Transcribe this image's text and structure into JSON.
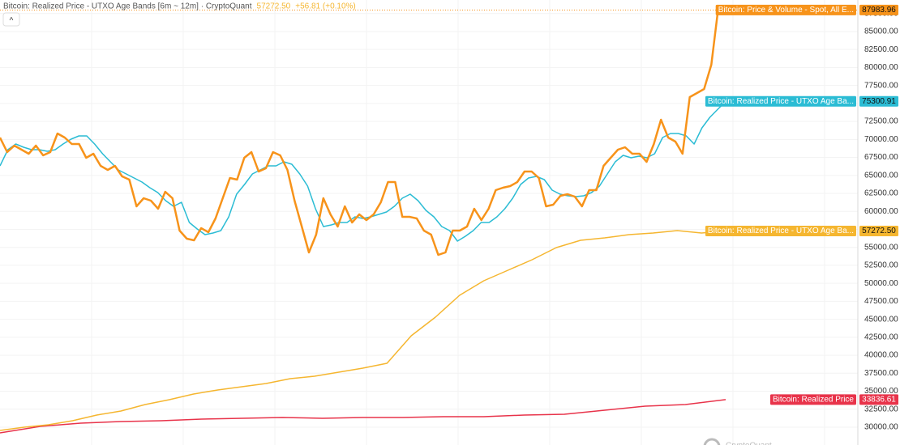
{
  "chart_data": {
    "type": "line",
    "title": "Bitcoin: Realized Price - UTXO Age Bands [6m ~ 12m] · CryptoQuant",
    "change": "+56.81 (+0.10%)",
    "collapse_button": "^",
    "watermark": "CryptoQuant",
    "ylim": [
      27525,
      89380
    ],
    "yticks": [
      {
        "value": 30000,
        "label": "30000.00"
      },
      {
        "value": 32500,
        "label": "32500.00"
      },
      {
        "value": 35000,
        "label": "35000.00"
      },
      {
        "value": 37500,
        "label": "37500.00"
      },
      {
        "value": 40000,
        "label": "40000.00"
      },
      {
        "value": 42500,
        "label": "42500.00"
      },
      {
        "value": 45000,
        "label": "45000.00"
      },
      {
        "value": 47500,
        "label": "47500.00"
      },
      {
        "value": 50000,
        "label": "50000.00"
      },
      {
        "value": 52500,
        "label": "52500.00"
      },
      {
        "value": 55000,
        "label": "55000.00"
      },
      {
        "value": 57500,
        "label": "57500.00"
      },
      {
        "value": 60000,
        "label": "60000.00"
      },
      {
        "value": 62500,
        "label": "62500.00"
      },
      {
        "value": 65000,
        "label": "65000.00"
      },
      {
        "value": 67500,
        "label": "67500.00"
      },
      {
        "value": 70000,
        "label": "70000.00"
      },
      {
        "value": 72500,
        "label": "72500.00"
      },
      {
        "value": 75000,
        "label": "75000.00"
      },
      {
        "value": 77500,
        "label": "77500.00"
      },
      {
        "value": 80000,
        "label": "80000.00"
      },
      {
        "value": 82500,
        "label": "82500.00"
      },
      {
        "value": 85000,
        "label": "85000.00"
      },
      {
        "value": 87500,
        "label": "87500.00"
      }
    ],
    "grid": true,
    "series": [
      {
        "name": "Bitcoin: Price & Volume - Spot, All E...",
        "color": "#f7931a",
        "width": 2.5,
        "values": [
          70260,
          68236,
          69135,
          68573,
          68011,
          69135,
          67786,
          68236,
          70822,
          70260,
          69360,
          69360,
          67448,
          68011,
          66324,
          65761,
          66324,
          64862,
          64412,
          60701,
          61825,
          61488,
          60363,
          62725,
          61825,
          57327,
          56202,
          55977,
          57664,
          57102,
          59014,
          61825,
          64637,
          64412,
          67448,
          68236,
          65536,
          65986,
          68236,
          67786,
          65761,
          61488,
          57889,
          54290,
          56765,
          61825,
          59576,
          57889,
          60701,
          58451,
          59576,
          58789,
          59576,
          61263,
          64074,
          64074,
          59239,
          59239,
          59014,
          57327,
          56765,
          53953,
          54290,
          57327,
          57327,
          57889,
          60363,
          58789,
          60363,
          62950,
          63287,
          63512,
          64074,
          65536,
          65536,
          64637,
          60701,
          60926,
          62163,
          62388,
          62050,
          60701,
          62950,
          62950,
          66324,
          67448,
          68573,
          68910,
          68011,
          68011,
          66886,
          69360,
          72734,
          70260,
          69697,
          68011,
          75883,
          76445,
          77007,
          80381,
          88478,
          87983.96
        ]
      },
      {
        "name": "Bitcoin: Realized Price - UTXO Age Ba...",
        "color": "#2bbcd4",
        "width": 1.5,
        "values": [
          66324,
          68573,
          69360,
          68910,
          68573,
          68573,
          68348,
          68573,
          69360,
          70035,
          70485,
          70485,
          69360,
          68011,
          66886,
          65761,
          65199,
          64637,
          64074,
          63287,
          62612,
          61488,
          60701,
          61263,
          58451,
          57552,
          56765,
          56990,
          57327,
          59239,
          62388,
          63737,
          65199,
          65761,
          66324,
          66324,
          66886,
          66549,
          65199,
          63512,
          60363,
          57889,
          58114,
          58451,
          58451,
          59239,
          59014,
          59239,
          59576,
          59914,
          60701,
          61825,
          62388,
          61488,
          60138,
          59239,
          57889,
          57327,
          55865,
          56540,
          57327,
          58451,
          58451,
          59239,
          60363,
          61825,
          63737,
          64637,
          64862,
          64412,
          62950,
          62388,
          62163,
          62050,
          62163,
          62612,
          63512,
          65199,
          66886,
          67786,
          67448,
          67673,
          67448,
          68011,
          70260,
          70822,
          70822,
          70485,
          69360,
          71610,
          73072,
          74196,
          75300.91
        ]
      },
      {
        "name": "Bitcoin: Realized Price - UTXO Age Ba...",
        "color": "#f5b630",
        "width": 1.5,
        "values": [
          29549,
          29999,
          30336,
          30898,
          31686,
          32248,
          33148,
          33822,
          34610,
          35172,
          35622,
          36072,
          36747,
          37083,
          37646,
          38208,
          38883,
          42707,
          45293,
          48331,
          50355,
          51817,
          53279,
          54966,
          55978,
          56315,
          56765,
          56990,
          57327,
          56990,
          57272.5
        ],
        "value_labels": [
          null,
          null,
          null,
          null,
          null,
          null,
          null,
          null,
          null,
          null,
          null,
          null,
          null,
          null,
          null,
          null,
          null,
          null,
          null,
          null,
          null,
          null,
          null,
          null,
          null,
          null,
          null,
          null,
          null,
          null,
          "57272.50"
        ]
      },
      {
        "name": "Bitcoin: Realized Price",
        "color": "#e8334a",
        "width": 1.5,
        "values": [
          29213,
          30112,
          30562,
          30787,
          30899,
          31124,
          31236,
          31349,
          31236,
          31349,
          31349,
          31461,
          31461,
          31686,
          31799,
          32362,
          32924,
          33148,
          33836.61
        ]
      }
    ]
  }
}
